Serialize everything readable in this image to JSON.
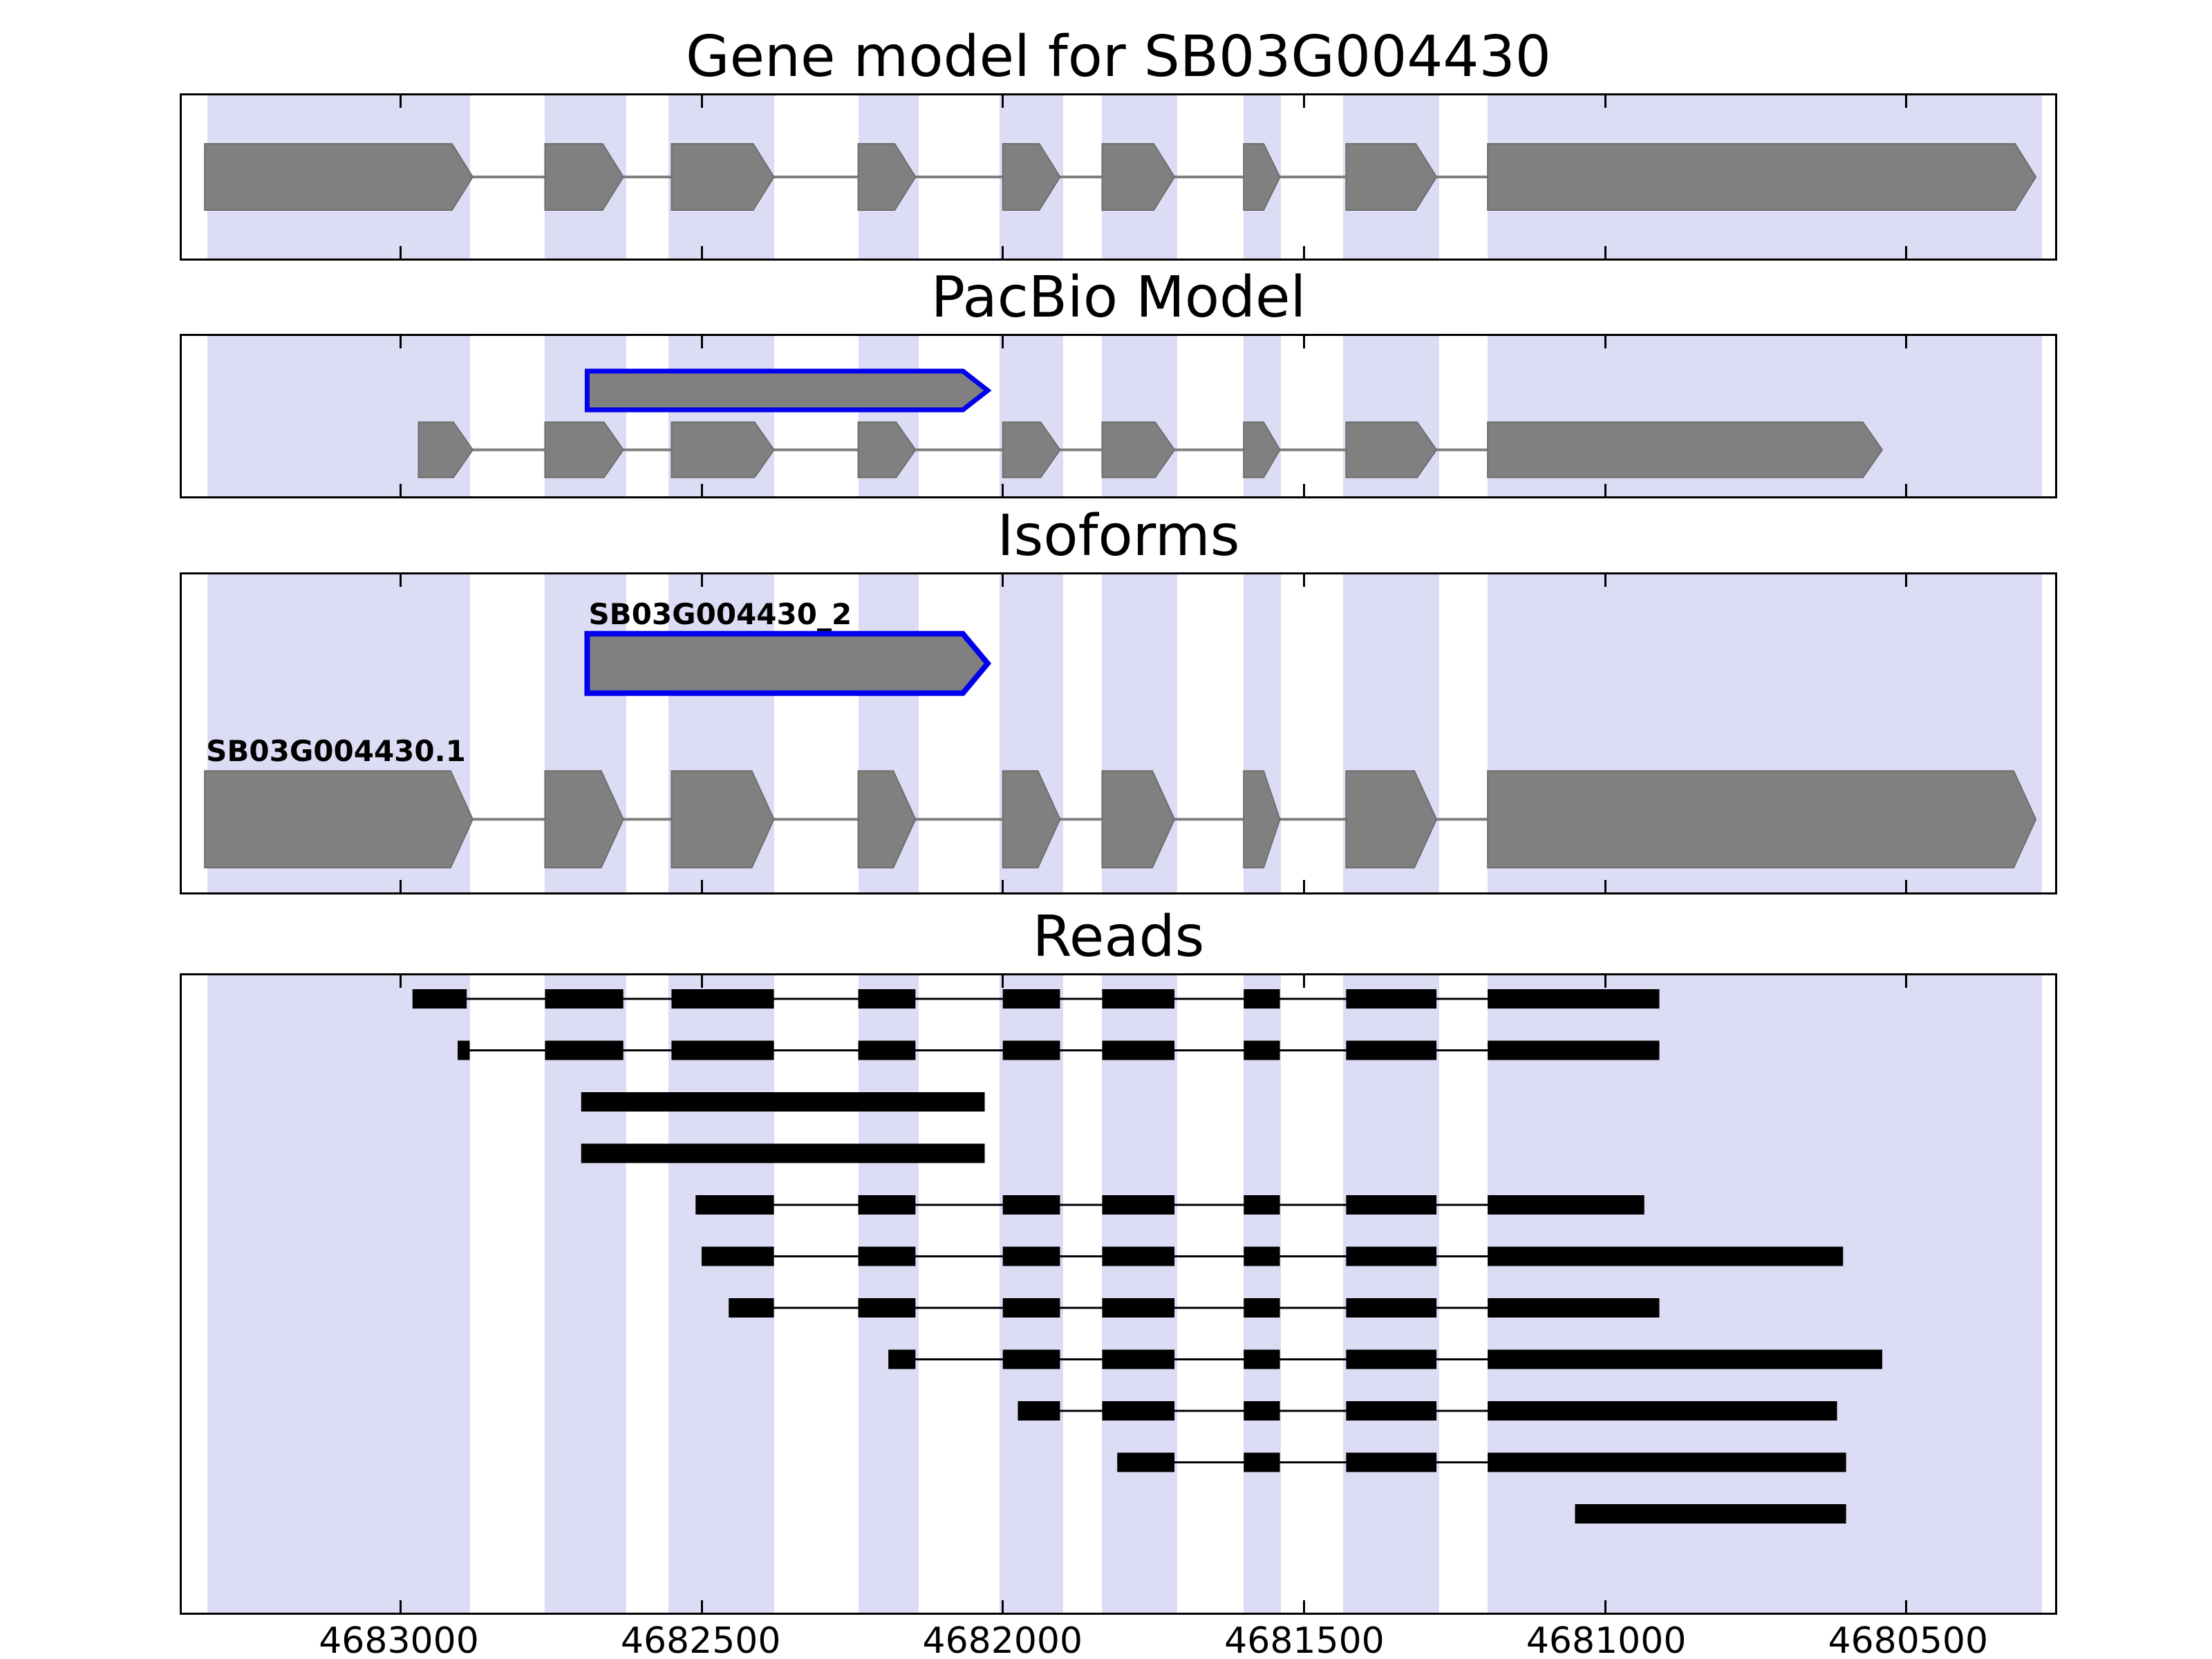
{
  "chart_data": {
    "type": "genome-tracks",
    "x_reversed": true,
    "x_domain": [
      4683363,
      4680253
    ],
    "x_ticks": [
      4683000,
      4682500,
      4682000,
      4681500,
      4681000,
      4680500
    ],
    "colors": {
      "band": "#dcdcf5",
      "feature_fill": "#808080",
      "feature_edge": "#6e6e6e",
      "highlight_edge": "#0000ee",
      "intron_line": "#7f7f7f",
      "read": "#000000",
      "panel_border": "#000000"
    },
    "exon_bands": [
      [
        4683320,
        4682885
      ],
      [
        4682760,
        4682625
      ],
      [
        4682555,
        4682380
      ],
      [
        4682240,
        4682140
      ],
      [
        4682005,
        4681900
      ],
      [
        4681835,
        4681710
      ],
      [
        4681600,
        4681538
      ],
      [
        4681435,
        4681275
      ],
      [
        4681195,
        4680275
      ]
    ],
    "panels": [
      {
        "name": "gene-model",
        "title": "Gene model for SB03G004430",
        "features": [
          {
            "kind": "transcript",
            "label": "",
            "fill": "#808080",
            "stroke": "#6e6e6e",
            "stroke_width": 2,
            "y": 0.5,
            "h": 96,
            "tip": 30,
            "exons": [
              [
                4683325,
                4682880
              ],
              [
                4682760,
                4682630
              ],
              [
                4682550,
                4682380
              ],
              [
                4682240,
                4682145
              ],
              [
                4682000,
                4681905
              ],
              [
                4681835,
                4681715
              ],
              [
                4681600,
                4681540
              ],
              [
                4681430,
                4681280
              ],
              [
                4681195,
                4680285
              ]
            ]
          }
        ]
      },
      {
        "name": "pacbio-model",
        "title": "PacBio Model",
        "features": [
          {
            "kind": "transcript",
            "label": "",
            "fill": "#808080",
            "stroke": "#0000ee",
            "stroke_width": 7,
            "y": 0.34,
            "h": 56,
            "tip": 36,
            "exons": [
              [
                4682690,
                4682025
              ]
            ]
          },
          {
            "kind": "transcript",
            "label": "",
            "fill": "#808080",
            "stroke": "#6e6e6e",
            "stroke_width": 2,
            "y": 0.71,
            "h": 80,
            "tip": 28,
            "exons": [
              [
                4682970,
                4682880
              ],
              [
                4682760,
                4682630
              ],
              [
                4682550,
                4682380
              ],
              [
                4682240,
                4682145
              ],
              [
                4682000,
                4681905
              ],
              [
                4681835,
                4681715
              ],
              [
                4681600,
                4681540
              ],
              [
                4681430,
                4681280
              ],
              [
                4681195,
                4680540
              ]
            ]
          }
        ]
      },
      {
        "name": "isoforms",
        "title": "Isoforms",
        "features": [
          {
            "kind": "transcript",
            "label": "SB03G004430_2",
            "fill": "#808080",
            "stroke": "#0000ee",
            "stroke_width": 8,
            "y": 0.28,
            "h": 86,
            "tip": 36,
            "exons": [
              [
                4682690,
                4682025
              ]
            ]
          },
          {
            "kind": "transcript",
            "label": "SB03G004430.1",
            "fill": "#808080",
            "stroke": "#6e6e6e",
            "stroke_width": 2,
            "y": 0.77,
            "h": 140,
            "tip": 32,
            "exons": [
              [
                4683325,
                4682880
              ],
              [
                4682760,
                4682630
              ],
              [
                4682550,
                4682380
              ],
              [
                4682240,
                4682145
              ],
              [
                4682000,
                4681905
              ],
              [
                4681835,
                4681715
              ],
              [
                4681600,
                4681540
              ],
              [
                4681430,
                4681280
              ],
              [
                4681195,
                4680285
              ]
            ]
          }
        ]
      },
      {
        "name": "reads",
        "title": "Reads",
        "reads": [
          {
            "blocks": [
              [
                4682980,
                4682890
              ],
              [
                4682760,
                4682630
              ],
              [
                4682550,
                4682380
              ],
              [
                4682240,
                4682145
              ],
              [
                4682000,
                4681905
              ],
              [
                4681835,
                4681715
              ],
              [
                4681600,
                4681540
              ],
              [
                4681430,
                4681280
              ],
              [
                4681195,
                4680910
              ]
            ]
          },
          {
            "blocks": [
              [
                4682905,
                4682885
              ],
              [
                4682760,
                4682630
              ],
              [
                4682550,
                4682380
              ],
              [
                4682240,
                4682145
              ],
              [
                4682000,
                4681905
              ],
              [
                4681835,
                4681715
              ],
              [
                4681600,
                4681540
              ],
              [
                4681430,
                4681280
              ],
              [
                4681195,
                4680910
              ]
            ]
          },
          {
            "blocks": [
              [
                4682700,
                4682030
              ]
            ]
          },
          {
            "blocks": [
              [
                4682700,
                4682030
              ]
            ]
          },
          {
            "blocks": [
              [
                4682510,
                4682380
              ],
              [
                4682240,
                4682145
              ],
              [
                4682000,
                4681905
              ],
              [
                4681835,
                4681715
              ],
              [
                4681600,
                4681540
              ],
              [
                4681430,
                4681280
              ],
              [
                4681195,
                4680935
              ]
            ]
          },
          {
            "blocks": [
              [
                4682500,
                4682380
              ],
              [
                4682240,
                4682145
              ],
              [
                4682000,
                4681905
              ],
              [
                4681835,
                4681715
              ],
              [
                4681600,
                4681540
              ],
              [
                4681430,
                4681280
              ],
              [
                4681195,
                4680605
              ]
            ]
          },
          {
            "blocks": [
              [
                4682455,
                4682380
              ],
              [
                4682240,
                4682145
              ],
              [
                4682000,
                4681905
              ],
              [
                4681835,
                4681715
              ],
              [
                4681600,
                4681540
              ],
              [
                4681430,
                4681280
              ],
              [
                4681195,
                4680910
              ]
            ]
          },
          {
            "blocks": [
              [
                4682190,
                4682145
              ],
              [
                4682000,
                4681905
              ],
              [
                4681835,
                4681715
              ],
              [
                4681600,
                4681540
              ],
              [
                4681430,
                4681280
              ],
              [
                4681195,
                4680540
              ]
            ]
          },
          {
            "blocks": [
              [
                4681975,
                4681905
              ],
              [
                4681835,
                4681715
              ],
              [
                4681600,
                4681540
              ],
              [
                4681430,
                4681280
              ],
              [
                4681195,
                4680615
              ]
            ]
          },
          {
            "blocks": [
              [
                4681810,
                4681715
              ],
              [
                4681600,
                4681540
              ],
              [
                4681430,
                4681280
              ],
              [
                4681195,
                4680600
              ]
            ]
          },
          {
            "blocks": [
              [
                4681050,
                4680600
              ]
            ]
          }
        ]
      }
    ]
  }
}
